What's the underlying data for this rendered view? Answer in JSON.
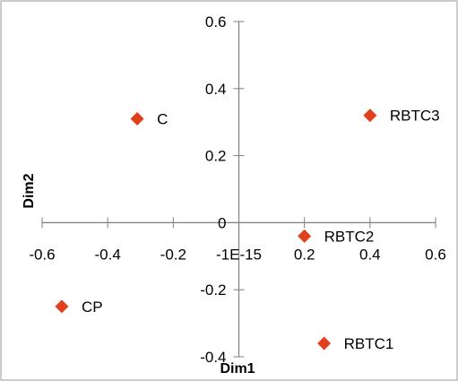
{
  "chart_data": {
    "type": "scatter",
    "title": "",
    "xlabel": "Dim1",
    "ylabel": "Dim2",
    "xlim": [
      -0.6,
      0.6
    ],
    "ylim": [
      -0.4,
      0.6
    ],
    "x_ticks": [
      -0.6,
      -0.4,
      -0.2,
      0,
      0.2,
      0.4,
      0.6
    ],
    "x_tick_labels": [
      "-0.6",
      "-0.4",
      "-0.2",
      "-1E-15",
      "0.2",
      "0.4",
      "0.6"
    ],
    "y_ticks": [
      -0.4,
      -0.2,
      0,
      0.2,
      0.4,
      0.6
    ],
    "y_tick_labels": [
      "-0.4",
      "-0.2",
      "0",
      "0.2",
      "0.4",
      "0.6"
    ],
    "grid": false,
    "marker_color": "#E0401A",
    "marker": "diamond",
    "points": [
      {
        "label": "C",
        "x": -0.31,
        "y": 0.31
      },
      {
        "label": "RBTC3",
        "x": 0.4,
        "y": 0.32
      },
      {
        "label": "RBTC2",
        "x": 0.2,
        "y": -0.04
      },
      {
        "label": "CP",
        "x": -0.54,
        "y": -0.25
      },
      {
        "label": "RBTC1",
        "x": 0.26,
        "y": -0.36
      }
    ]
  }
}
